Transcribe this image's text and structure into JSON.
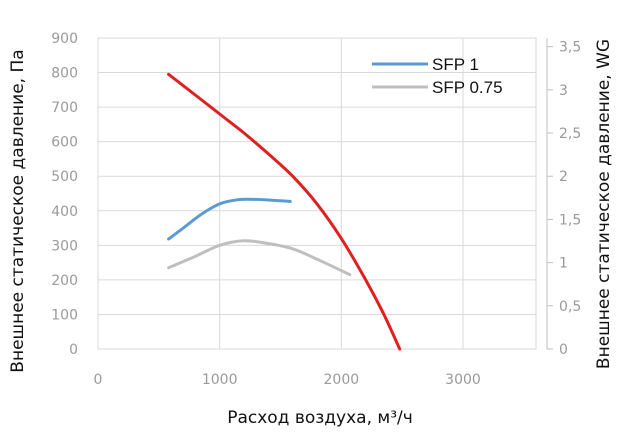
{
  "chart_data": {
    "type": "line",
    "xlabel": "Расход воздуха, м³/ч",
    "ylabel_left": "Внешнее статическое давление, Па",
    "ylabel_right": "Внешнее статическое давление, WG",
    "xlim": [
      0,
      3600
    ],
    "ylim_left": [
      0,
      900
    ],
    "ylim_right": [
      0,
      3.6
    ],
    "x_ticks": [
      "0",
      "1000",
      "2000",
      "3000"
    ],
    "x_tick_values": [
      0,
      1000,
      2000,
      3000
    ],
    "y_left_ticks": [
      "0",
      "100",
      "200",
      "300",
      "400",
      "500",
      "600",
      "700",
      "800",
      "900"
    ],
    "y_left_tick_values": [
      0,
      100,
      200,
      300,
      400,
      500,
      600,
      700,
      800,
      900
    ],
    "y_right_ticks": [
      "0",
      "0,5",
      "1",
      "1,5",
      "2",
      "2,5",
      "3",
      "3,5"
    ],
    "y_right_tick_values": [
      0,
      0.5,
      1,
      1.5,
      2,
      2.5,
      3,
      3.5
    ],
    "grid": true,
    "legend_position": "top-right",
    "series": [
      {
        "name": "",
        "color": "#e02020",
        "in_legend": false,
        "x": [
          580,
          800,
          1000,
          1200,
          1400,
          1600,
          1800,
          2000,
          2200,
          2350,
          2480
        ],
        "y": [
          795,
          735,
          680,
          625,
          565,
          500,
          420,
          320,
          200,
          100,
          0
        ]
      },
      {
        "name": "SFP 1",
        "color": "#5b9bd5",
        "in_legend": true,
        "x": [
          580,
          700,
          850,
          1000,
          1150,
          1300,
          1450,
          1580
        ],
        "y": [
          318,
          350,
          390,
          420,
          432,
          433,
          430,
          427
        ]
      },
      {
        "name": "SFP 0.75",
        "color": "#bfbfbf",
        "in_legend": true,
        "x": [
          580,
          800,
          1000,
          1200,
          1400,
          1600,
          1800,
          2070
        ],
        "y": [
          235,
          268,
          300,
          313,
          305,
          290,
          260,
          215
        ]
      }
    ]
  }
}
